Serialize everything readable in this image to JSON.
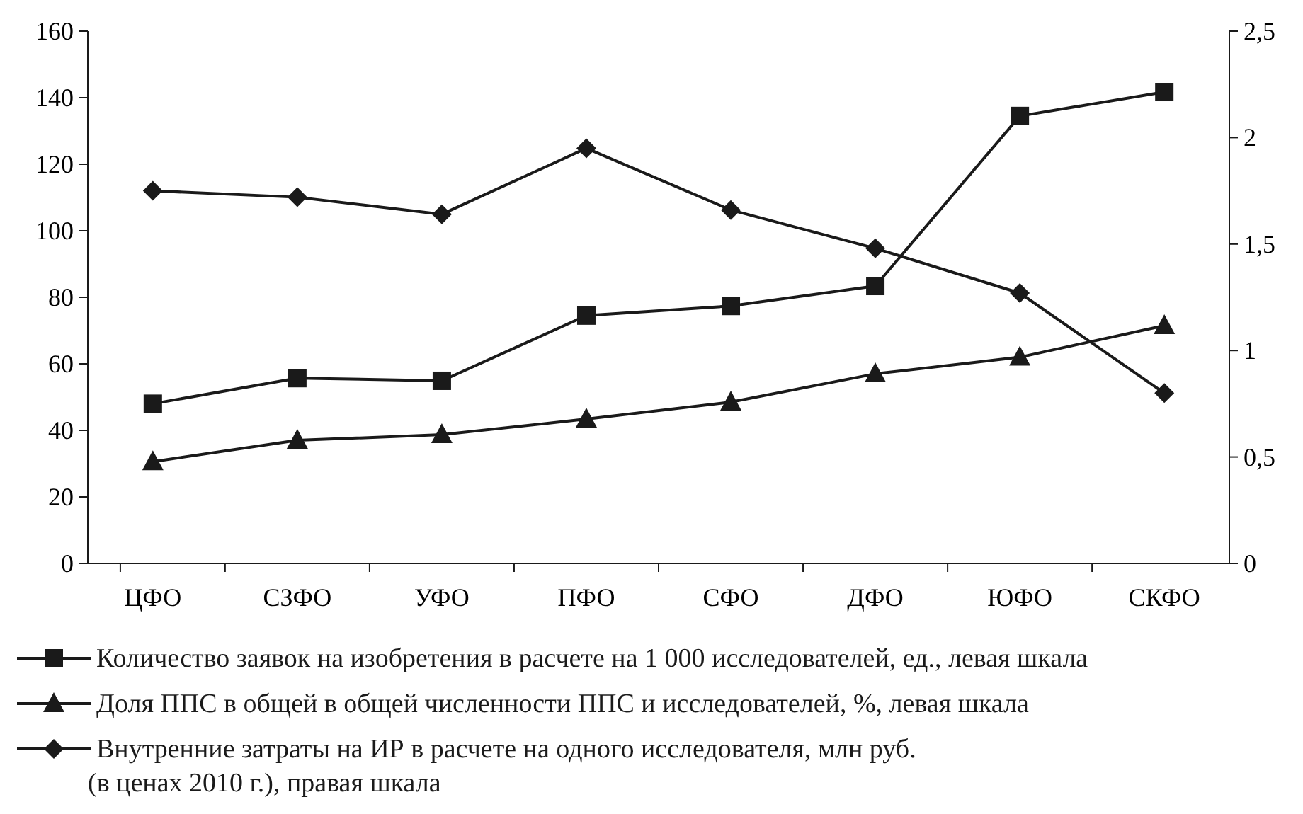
{
  "chart_data": {
    "type": "line",
    "categories": [
      "ЦФО",
      "СЗФО",
      "УФО",
      "ПФО",
      "СФО",
      "ДФО",
      "ЮФО",
      "СКФО"
    ],
    "series": [
      {
        "name": "Количество заявок на изобретения в расчете на 1 000 исследователей, ед., левая шкала",
        "color": "#1a1a1a",
        "marker": "square",
        "values": [
          48,
          55.7,
          54.9,
          74.5,
          77.4,
          83.4,
          134.5,
          141.7
        ]
      },
      {
        "name": "Доля ППС в общей в общей численности ППС и исследователей, %, левая шкала",
        "color": "#1a1a1a",
        "marker": "triangle",
        "values": [
          30.6,
          37,
          38.7,
          43.4,
          48.5,
          57,
          62,
          71.5
        ]
      },
      {
        "name": "Внутренние затраты на ИР в расчете на одного исследователя, млн руб. (в ценах 2010 г.), правая шкала",
        "color": "#1a1a1a",
        "marker": "diamond",
        "axis": "y2",
        "values": [
          1.75,
          1.72,
          1.64,
          1.95,
          1.66,
          1.48,
          1.27,
          0.8
        ]
      }
    ],
    "ylim": [
      0,
      160
    ],
    "yticks": [
      0,
      20,
      40,
      60,
      80,
      100,
      120,
      140,
      160
    ],
    "y2lim": [
      0,
      2.5
    ],
    "y2ticks": [
      0,
      {
        "value": 0.5,
        "label": "0,5"
      },
      1,
      {
        "value": 1.5,
        "label": "1,5"
      },
      2,
      {
        "value": 2.5,
        "label": "2,5"
      }
    ],
    "grid": false,
    "legend": "bottom",
    "line_style": "solid"
  }
}
